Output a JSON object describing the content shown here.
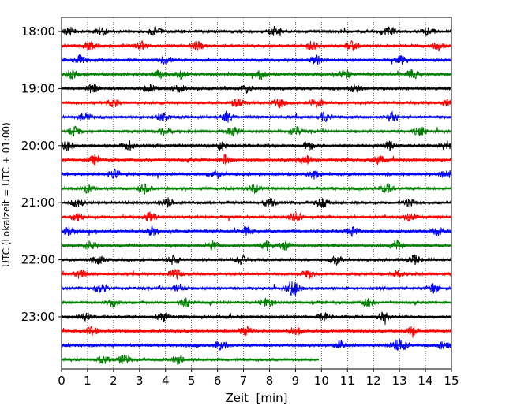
{
  "chart_data": {
    "type": "line",
    "title": "",
    "xlabel": "Zeit  [min]",
    "ylabel": "UTC (Lokalzeit = UTC + 01:00)",
    "xlim": [
      0,
      15
    ],
    "x_ticks": [
      "0",
      "1",
      "2",
      "3",
      "4",
      "5",
      "6",
      "7",
      "8",
      "9",
      "10",
      "11",
      "12",
      "13",
      "14",
      "15"
    ],
    "y_ticks": [
      "18:00",
      "19:00",
      "20:00",
      "21:00",
      "22:00",
      "23:00"
    ],
    "grid": "vertical dotted",
    "trace_colors": [
      "#000000",
      "#ff0000",
      "#0000ff",
      "#008000"
    ],
    "traces": [
      {
        "start": "18:00",
        "x_end": 15,
        "bursts": [
          0.3,
          1.5,
          3.6,
          8.2,
          12.6,
          14.1
        ]
      },
      {
        "start": "18:15",
        "x_end": 15,
        "bursts": [
          1.1,
          3.1,
          5.2,
          9.6,
          11.2,
          14.5
        ]
      },
      {
        "start": "18:30",
        "x_end": 15,
        "bursts": [
          0.7,
          4.0,
          9.8,
          13.1
        ]
      },
      {
        "start": "18:45",
        "x_end": 15,
        "bursts": [
          0.4,
          3.8,
          4.6,
          7.7,
          10.9,
          13.5
        ]
      },
      {
        "start": "19:00",
        "x_end": 15,
        "bursts": [
          1.2,
          3.4,
          4.5,
          7.1,
          11.3
        ]
      },
      {
        "start": "19:15",
        "x_end": 15,
        "bursts": [
          2.0,
          6.8,
          8.4,
          9.8,
          14.9
        ]
      },
      {
        "start": "19:30",
        "x_end": 15,
        "bursts": [
          0.9,
          3.9,
          6.4,
          10.1,
          12.7
        ]
      },
      {
        "start": "19:45",
        "x_end": 15,
        "bursts": [
          0.5,
          4.0,
          6.6,
          9.0,
          13.8
        ]
      },
      {
        "start": "20:00",
        "x_end": 15,
        "bursts": [
          0.2,
          2.6,
          6.1,
          9.5,
          12.6,
          14.8
        ]
      },
      {
        "start": "20:15",
        "x_end": 15,
        "bursts": [
          1.3,
          6.3,
          9.4,
          12.2
        ]
      },
      {
        "start": "20:30",
        "x_end": 15,
        "bursts": [
          2.0,
          5.9,
          9.7,
          14.8
        ]
      },
      {
        "start": "20:45",
        "x_end": 15,
        "bursts": [
          1.0,
          3.2,
          7.4,
          12.5
        ]
      },
      {
        "start": "21:00",
        "x_end": 15,
        "bursts": [
          0.6,
          4.1,
          8.0,
          10.0,
          13.4
        ]
      },
      {
        "start": "21:15",
        "x_end": 15,
        "bursts": [
          0.6,
          3.4,
          9.0,
          13.4
        ]
      },
      {
        "start": "21:30",
        "x_end": 15,
        "bursts": [
          0.3,
          3.5,
          7.1,
          11.2,
          14.5
        ]
      },
      {
        "start": "21:45",
        "x_end": 15,
        "bursts": [
          1.1,
          5.8,
          7.9,
          8.6,
          12.9
        ]
      },
      {
        "start": "22:00",
        "x_end": 15,
        "bursts": [
          1.4,
          4.3,
          6.9,
          10.6,
          13.6
        ]
      },
      {
        "start": "22:15",
        "x_end": 15,
        "bursts": [
          0.7,
          4.4,
          9.5,
          12.9
        ]
      },
      {
        "start": "22:30",
        "x_end": 15,
        "bursts": [
          1.5,
          4.5,
          8.8,
          9.0,
          14.3
        ]
      },
      {
        "start": "22:45",
        "x_end": 15,
        "bursts": [
          2.0,
          4.8,
          7.9,
          11.8
        ]
      },
      {
        "start": "23:00",
        "x_end": 15,
        "bursts": [
          0.9,
          3.9,
          10.1,
          12.4
        ]
      },
      {
        "start": "23:15",
        "x_end": 15,
        "bursts": [
          1.2,
          7.1,
          9.0,
          13.5
        ]
      },
      {
        "start": "23:30",
        "x_end": 15,
        "bursts": [
          6.1,
          10.7,
          12.9,
          13.1,
          14.7
        ]
      },
      {
        "start": "23:45",
        "x_end": 9.9,
        "bursts": [
          1.6,
          2.4,
          4.5
        ]
      }
    ]
  }
}
